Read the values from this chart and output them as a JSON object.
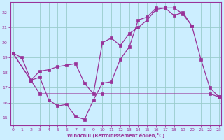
{
  "xlabel": "Windchill (Refroidissement éolien,°C)",
  "bg_color": "#cceeff",
  "grid_color": "#99cccc",
  "line_color": "#993399",
  "hours": [
    0,
    1,
    2,
    3,
    4,
    5,
    6,
    7,
    8,
    9,
    10,
    11,
    12,
    13,
    14,
    15,
    16,
    17,
    18,
    19,
    20,
    21,
    22,
    23
  ],
  "line1": [
    19.3,
    19.0,
    17.5,
    17.7,
    16.2,
    15.8,
    15.9,
    15.1,
    14.9,
    16.2,
    17.3,
    17.4,
    18.9,
    19.7,
    21.5,
    21.7,
    22.3,
    22.3,
    22.3,
    21.9,
    21.1,
    18.9,
    17.0,
    16.4
  ],
  "line2": [
    19.3,
    null,
    null,
    null,
    null,
    null,
    null,
    null,
    null,
    null,
    null,
    null,
    null,
    null,
    null,
    null,
    null,
    null,
    null,
    null,
    null,
    null,
    null,
    null
  ],
  "line3_x": [
    0,
    3,
    10,
    22,
    23
  ],
  "line3_y": [
    19.3,
    16.6,
    16.6,
    16.6,
    16.4
  ],
  "line2_x": [
    0,
    2,
    3,
    4,
    5,
    6,
    7,
    8,
    9,
    10,
    11,
    12,
    13,
    14,
    15,
    16,
    17,
    18,
    19,
    20
  ],
  "line2_y": [
    19.3,
    17.5,
    18.1,
    18.2,
    18.4,
    18.5,
    18.6,
    17.3,
    16.6,
    20.0,
    20.3,
    19.8,
    20.6,
    21.0,
    21.5,
    22.2,
    22.3,
    21.8,
    22.0,
    21.1
  ],
  "ylim": [
    14.5,
    22.7
  ],
  "xlim": [
    -0.3,
    23.3
  ],
  "yticks": [
    15,
    16,
    17,
    18,
    19,
    20,
    21,
    22
  ],
  "xticks": [
    0,
    1,
    2,
    3,
    4,
    5,
    6,
    7,
    8,
    9,
    10,
    11,
    12,
    13,
    14,
    15,
    16,
    17,
    18,
    19,
    20,
    21,
    22,
    23
  ]
}
